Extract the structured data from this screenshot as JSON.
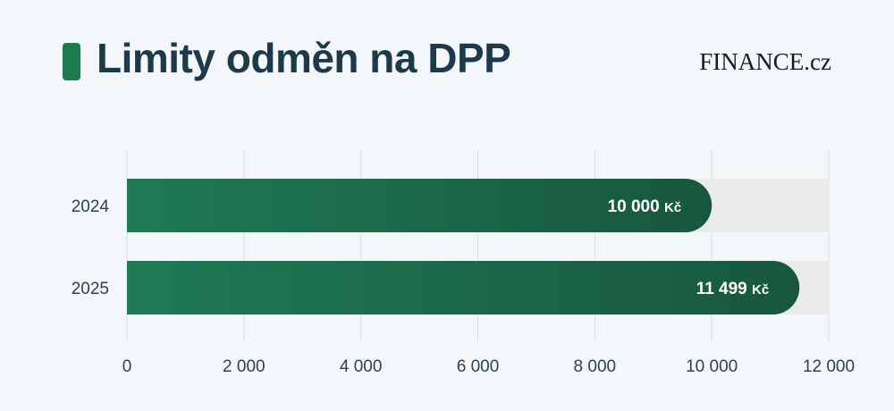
{
  "header": {
    "title": "Limity odměn na DPP",
    "brand": "FINANCE.cz"
  },
  "colors": {
    "accent": "#1e7a52",
    "bar_start": "#1f7a56",
    "bar_end": "#17573e",
    "track": "#ebebeb",
    "grid": "#dadde0",
    "title": "#1d3a4a",
    "tick_text": "#2e3f4d"
  },
  "chart_data": {
    "type": "bar",
    "orientation": "horizontal",
    "categories": [
      "2024",
      "2025"
    ],
    "values": [
      10000,
      11499
    ],
    "value_labels": [
      "10 000 Kč",
      "11 499 Kč"
    ],
    "xlim": [
      0,
      12000
    ],
    "xticks": [
      0,
      2000,
      4000,
      6000,
      8000,
      10000,
      12000
    ],
    "xtick_labels": [
      "0",
      "2 000",
      "4 000",
      "6 000",
      "8 000",
      "10 000",
      "12 000"
    ],
    "grid": true,
    "title": "Limity odměn na DPP"
  }
}
